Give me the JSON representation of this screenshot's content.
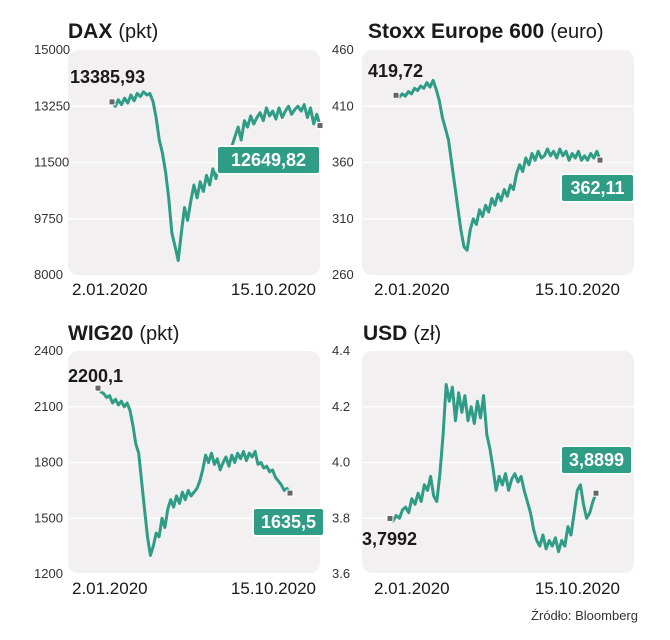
{
  "source": "Źródło: Bloomberg",
  "colors": {
    "line": "#2f9c86",
    "panel": "#f3f0f1",
    "label_fill": "#2f9c86",
    "marker": "#666666"
  },
  "chart_data": [
    {
      "type": "line",
      "title": "DAX",
      "unit": "(pkt)",
      "x_start": "2.01.2020",
      "x_end": "15.10.2020",
      "yticks": [
        "15000",
        "13250",
        "11500",
        "9750",
        "8000"
      ],
      "ylim": [
        8000,
        15000
      ],
      "start_label": "13385,93",
      "end_label": "12649,82",
      "start_value": 13385.93,
      "end_value": 12649.82,
      "values": [
        13385.93,
        13250,
        13450,
        13300,
        13500,
        13350,
        13600,
        13420,
        13650,
        13550,
        13700,
        13600,
        13650,
        13400,
        12900,
        12200,
        11800,
        11200,
        10400,
        9300,
        8900,
        8450,
        9300,
        10100,
        9700,
        10300,
        10800,
        10400,
        10900,
        10600,
        11100,
        10800,
        11300,
        11000,
        11500,
        11200,
        11700,
        11900,
        12000,
        12300,
        12600,
        12200,
        12800,
        12600,
        12950,
        12700,
        12900,
        13050,
        12800,
        13200,
        12950,
        13100,
        12850,
        13200,
        12900,
        13100,
        13250,
        13000,
        13150,
        13250,
        13100,
        13300,
        12900,
        13200,
        12700,
        13000,
        12649.82
      ]
    },
    {
      "type": "line",
      "title": "Stoxx Europe 600",
      "unit": "(euro)",
      "x_start": "2.01.2020",
      "x_end": "15.10.2020",
      "yticks": [
        "460",
        "410",
        "360",
        "310",
        "260"
      ],
      "ylim": [
        260,
        460
      ],
      "start_label": "419,72",
      "end_label": "362,11",
      "start_value": 419.72,
      "end_value": 362.11,
      "values": [
        419.72,
        418,
        421,
        419,
        423,
        421,
        426,
        424,
        428,
        426,
        431,
        427,
        433,
        425,
        415,
        400,
        390,
        380,
        360,
        340,
        320,
        300,
        285,
        282,
        300,
        310,
        305,
        318,
        312,
        322,
        316,
        328,
        322,
        332,
        326,
        336,
        330,
        340,
        336,
        350,
        358,
        352,
        364,
        358,
        368,
        362,
        370,
        364,
        366,
        372,
        366,
        370,
        364,
        372,
        366,
        370,
        362,
        368,
        364,
        370,
        362,
        366,
        362,
        368,
        364,
        370,
        362.11
      ]
    },
    {
      "type": "line",
      "title": "WIG20",
      "unit": "(pkt)",
      "x_start": "2.01.2020",
      "x_end": "15.10.2020",
      "yticks": [
        "2400",
        "2100",
        "1800",
        "1500",
        "1200"
      ],
      "ylim": [
        1200,
        2400
      ],
      "start_label": "2200,1",
      "end_label": "1635,5",
      "start_value": 2200.1,
      "end_value": 1635.5,
      "values": [
        2200.1,
        2180,
        2170,
        2150,
        2160,
        2120,
        2140,
        2110,
        2130,
        2100,
        2120,
        2080,
        2000,
        1900,
        1850,
        1700,
        1550,
        1400,
        1300,
        1350,
        1420,
        1400,
        1500,
        1450,
        1550,
        1600,
        1560,
        1620,
        1580,
        1640,
        1600,
        1650,
        1620,
        1640,
        1660,
        1700,
        1760,
        1840,
        1800,
        1850,
        1790,
        1820,
        1760,
        1800,
        1830,
        1780,
        1840,
        1800,
        1850,
        1820,
        1860,
        1810,
        1850,
        1830,
        1860,
        1790,
        1800,
        1770,
        1780,
        1750,
        1760,
        1720,
        1700,
        1680,
        1650,
        1660,
        1635.5
      ]
    },
    {
      "type": "line",
      "title": "USD",
      "unit": "(zł)",
      "x_start": "2.01.2020",
      "x_end": "15.10.2020",
      "yticks": [
        "4.4",
        "4.2",
        "4.0",
        "3.8",
        "3.6"
      ],
      "ylim": [
        3.6,
        4.4
      ],
      "start_label": "3,7992",
      "end_label": "3,8899",
      "start_value": 3.7992,
      "end_value": 3.8899,
      "values": [
        3.7992,
        3.79,
        3.81,
        3.8,
        3.83,
        3.84,
        3.82,
        3.87,
        3.85,
        3.89,
        3.86,
        3.92,
        3.9,
        3.95,
        3.88,
        3.86,
        3.96,
        4.1,
        4.28,
        4.22,
        4.27,
        4.15,
        4.25,
        4.18,
        4.24,
        4.15,
        4.2,
        4.14,
        4.22,
        4.16,
        4.24,
        4.1,
        4.05,
        3.98,
        3.9,
        3.95,
        3.92,
        3.96,
        3.9,
        3.94,
        3.96,
        3.93,
        3.95,
        3.9,
        3.86,
        3.82,
        3.76,
        3.72,
        3.7,
        3.74,
        3.69,
        3.72,
        3.7,
        3.73,
        3.68,
        3.72,
        3.7,
        3.77,
        3.74,
        3.82,
        3.9,
        3.92,
        3.85,
        3.8,
        3.82,
        3.86,
        3.8899
      ]
    }
  ]
}
